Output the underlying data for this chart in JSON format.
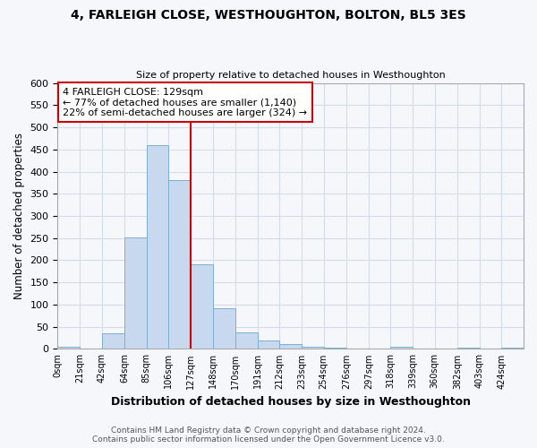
{
  "title": "4, FARLEIGH CLOSE, WESTHOUGHTON, BOLTON, BL5 3ES",
  "subtitle": "Size of property relative to detached houses in Westhoughton",
  "xlabel": "Distribution of detached houses by size in Westhoughton",
  "ylabel": "Number of detached properties",
  "bin_edges": [
    0,
    21,
    42,
    64,
    85,
    106,
    127,
    148,
    170,
    191,
    212,
    233,
    254,
    276,
    297,
    318,
    339,
    360,
    382,
    403,
    424,
    445
  ],
  "bin_labels": [
    "0sqm",
    "21sqm",
    "42sqm",
    "64sqm",
    "85sqm",
    "106sqm",
    "127sqm",
    "148sqm",
    "170sqm",
    "191sqm",
    "212sqm",
    "233sqm",
    "254sqm",
    "276sqm",
    "297sqm",
    "318sqm",
    "339sqm",
    "360sqm",
    "382sqm",
    "403sqm",
    "424sqm"
  ],
  "bar_heights": [
    5,
    0,
    35,
    252,
    460,
    380,
    190,
    91,
    37,
    19,
    10,
    5,
    2,
    1,
    0,
    4,
    0,
    0,
    3,
    0,
    3
  ],
  "bar_color": "#c8d9ef",
  "bar_edge_color": "#7bafd4",
  "property_line_x": 127,
  "property_line_color": "#cc0000",
  "annotation_text": "4 FARLEIGH CLOSE: 129sqm\n← 77% of detached houses are smaller (1,140)\n22% of semi-detached houses are larger (324) →",
  "annotation_box_facecolor": "#ffffff",
  "annotation_box_edgecolor": "#cc0000",
  "ylim": [
    0,
    600
  ],
  "yticks": [
    0,
    50,
    100,
    150,
    200,
    250,
    300,
    350,
    400,
    450,
    500,
    550,
    600
  ],
  "grid_color": "#d4dce8",
  "background_color": "#f5f7fb",
  "plot_bg_color": "#f5f7fb",
  "footer_line1": "Contains HM Land Registry data © Crown copyright and database right 2024.",
  "footer_line2": "Contains public sector information licensed under the Open Government Licence v3.0.",
  "title_fontsize": 10,
  "subtitle_fontsize": 8,
  "annotation_fontsize": 8
}
